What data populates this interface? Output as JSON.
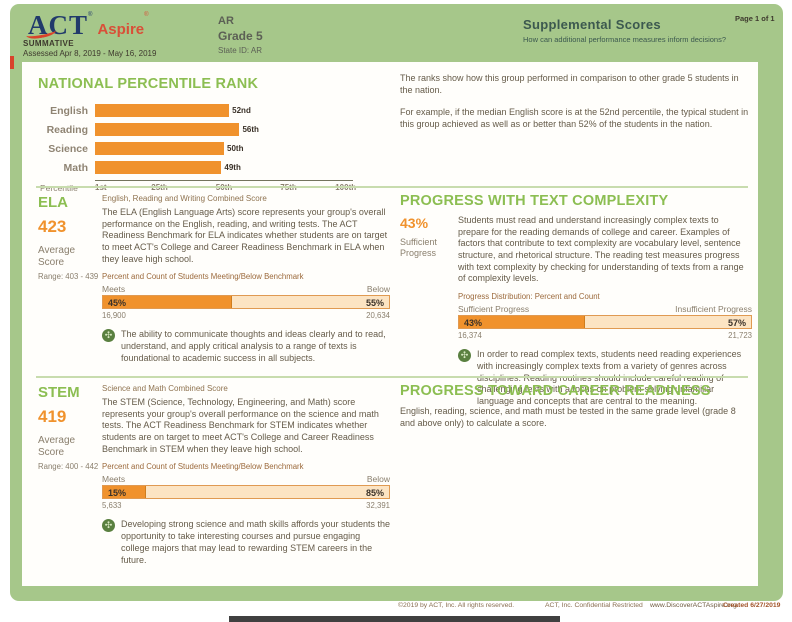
{
  "header": {
    "logo_act": "ACT",
    "logo_aspire": "Aspire",
    "registered_mark": "®",
    "summative": "SUMMATIVE",
    "assessed": "Assessed Apr 8, 2019 - May 16, 2019",
    "org": "AR",
    "grade": "Grade 5",
    "state_id": "State ID: AR",
    "report_title": "Supplemental Scores",
    "report_question": "How can additional performance measures inform decisions?",
    "page_label": "Page 1 of 1"
  },
  "intro": {
    "p1": "The ranks show how this group performed in comparison to other grade 5 students in the nation.",
    "p2": "For example, if the median English score is at the 52nd percentile, the typical student in this group achieved as well as or better than 52% of the students in the nation."
  },
  "chart_data": {
    "type": "bar",
    "orientation": "horizontal",
    "title": "NATIONAL PERCENTILE RANK",
    "categories": [
      "English",
      "Reading",
      "Science",
      "Math"
    ],
    "values": [
      52,
      56,
      50,
      49
    ],
    "value_labels": [
      "52nd",
      "56th",
      "50th",
      "49th"
    ],
    "xlabel": "Percentile",
    "x_ticks": [
      "1st",
      "25th",
      "50th",
      "75th",
      "100th"
    ],
    "xlim": [
      0,
      100
    ],
    "grid": false,
    "bar_color": "#f0922d"
  },
  "ela": {
    "title": "ELA",
    "score": "423",
    "score_label": "Average Score",
    "range": "Range: 403 - 439",
    "subheading": "English, Reading and Writing Combined Score",
    "description": "The ELA (English Language Arts) score represents your group's overall performance on the English, reading, and writing tests. The ACT Readiness Benchmark for ELA indicates whether students are on target to meet ACT's College and Career Readiness Benchmark in ELA when they leave high school.",
    "bar_title": "Percent and Count of Students Meeting/Below Benchmark",
    "left_label": "Meets",
    "right_label": "Below",
    "left_pct": "45%",
    "right_pct": "55%",
    "left_value": 45,
    "left_count": "16,900",
    "right_count": "20,634",
    "note": "The ability to communicate thoughts and ideas clearly and to read, understand, and apply critical analysis to a range of texts is foundational to academic success in all subjects."
  },
  "text_complexity": {
    "title": "PROGRESS WITH TEXT COMPLEXITY",
    "pct": "43%",
    "pct_label": "Sufficient Progress",
    "description": "Students must read and understand increasingly complex texts to prepare for the reading demands of college and career. Examples of factors that contribute to text complexity are vocabulary level, sentence structure, and rhetorical structure. The reading test measures progress with text complexity by checking for understanding of texts from a range of complexity levels.",
    "bar_title": "Progress Distribution: Percent and Count",
    "left_label": "Sufficient Progress",
    "right_label": "Insufficient Progress",
    "left_pct": "43%",
    "right_pct": "57%",
    "left_value": 43,
    "left_count": "16,374",
    "right_count": "21,723",
    "note": "In order to read complex texts, students need reading experiences with increasingly complex texts from a variety of genres across disciplines. Reading routines should include careful reading of challenging texts with a focus on problem-solving unfamiliar language and concepts that are central to the meaning."
  },
  "stem": {
    "title": "STEM",
    "score": "419",
    "score_label": "Average Score",
    "range": "Range: 400 - 442",
    "subheading": "Science and Math Combined Score",
    "description": "The STEM (Science, Technology, Engineering, and Math) score represents your group's overall performance on the science and math tests. The ACT Readiness Benchmark for STEM indicates whether students are on target to meet ACT's College and Career Readiness Benchmark in STEM when they leave high school.",
    "bar_title": "Percent and Count of Students Meeting/Below Benchmark",
    "left_label": "Meets",
    "right_label": "Below",
    "left_pct": "15%",
    "right_pct": "85%",
    "left_value": 15,
    "left_count": "5,633",
    "right_count": "32,391",
    "note": "Developing strong science and math skills affords your students the opportunity to take interesting courses and pursue engaging college majors that may lead to rewarding STEM careers in the future."
  },
  "career": {
    "title": "PROGRESS TOWARD CAREER READINESS",
    "description": "English, reading, science, and math must be tested in the same grade level (grade 8 and above only) to calculate a score."
  },
  "footer": {
    "copyright": "©2019 by ACT, Inc. All rights reserved.",
    "confidential": "ACT, Inc. Confidential Restricted",
    "website": "www.DiscoverACTAspire.org",
    "created": "Created 6/27/2019"
  },
  "colors": {
    "page_green": "#a6c78a",
    "heading_green": "#8cbe52",
    "accent_orange": "#f0922d",
    "bar_background_peach": "#fce4c3",
    "report_title_teal": "#3c594f",
    "logo_navy": "#213a6b",
    "logo_red": "#d94f38",
    "note_icon_green": "#5a8040"
  }
}
